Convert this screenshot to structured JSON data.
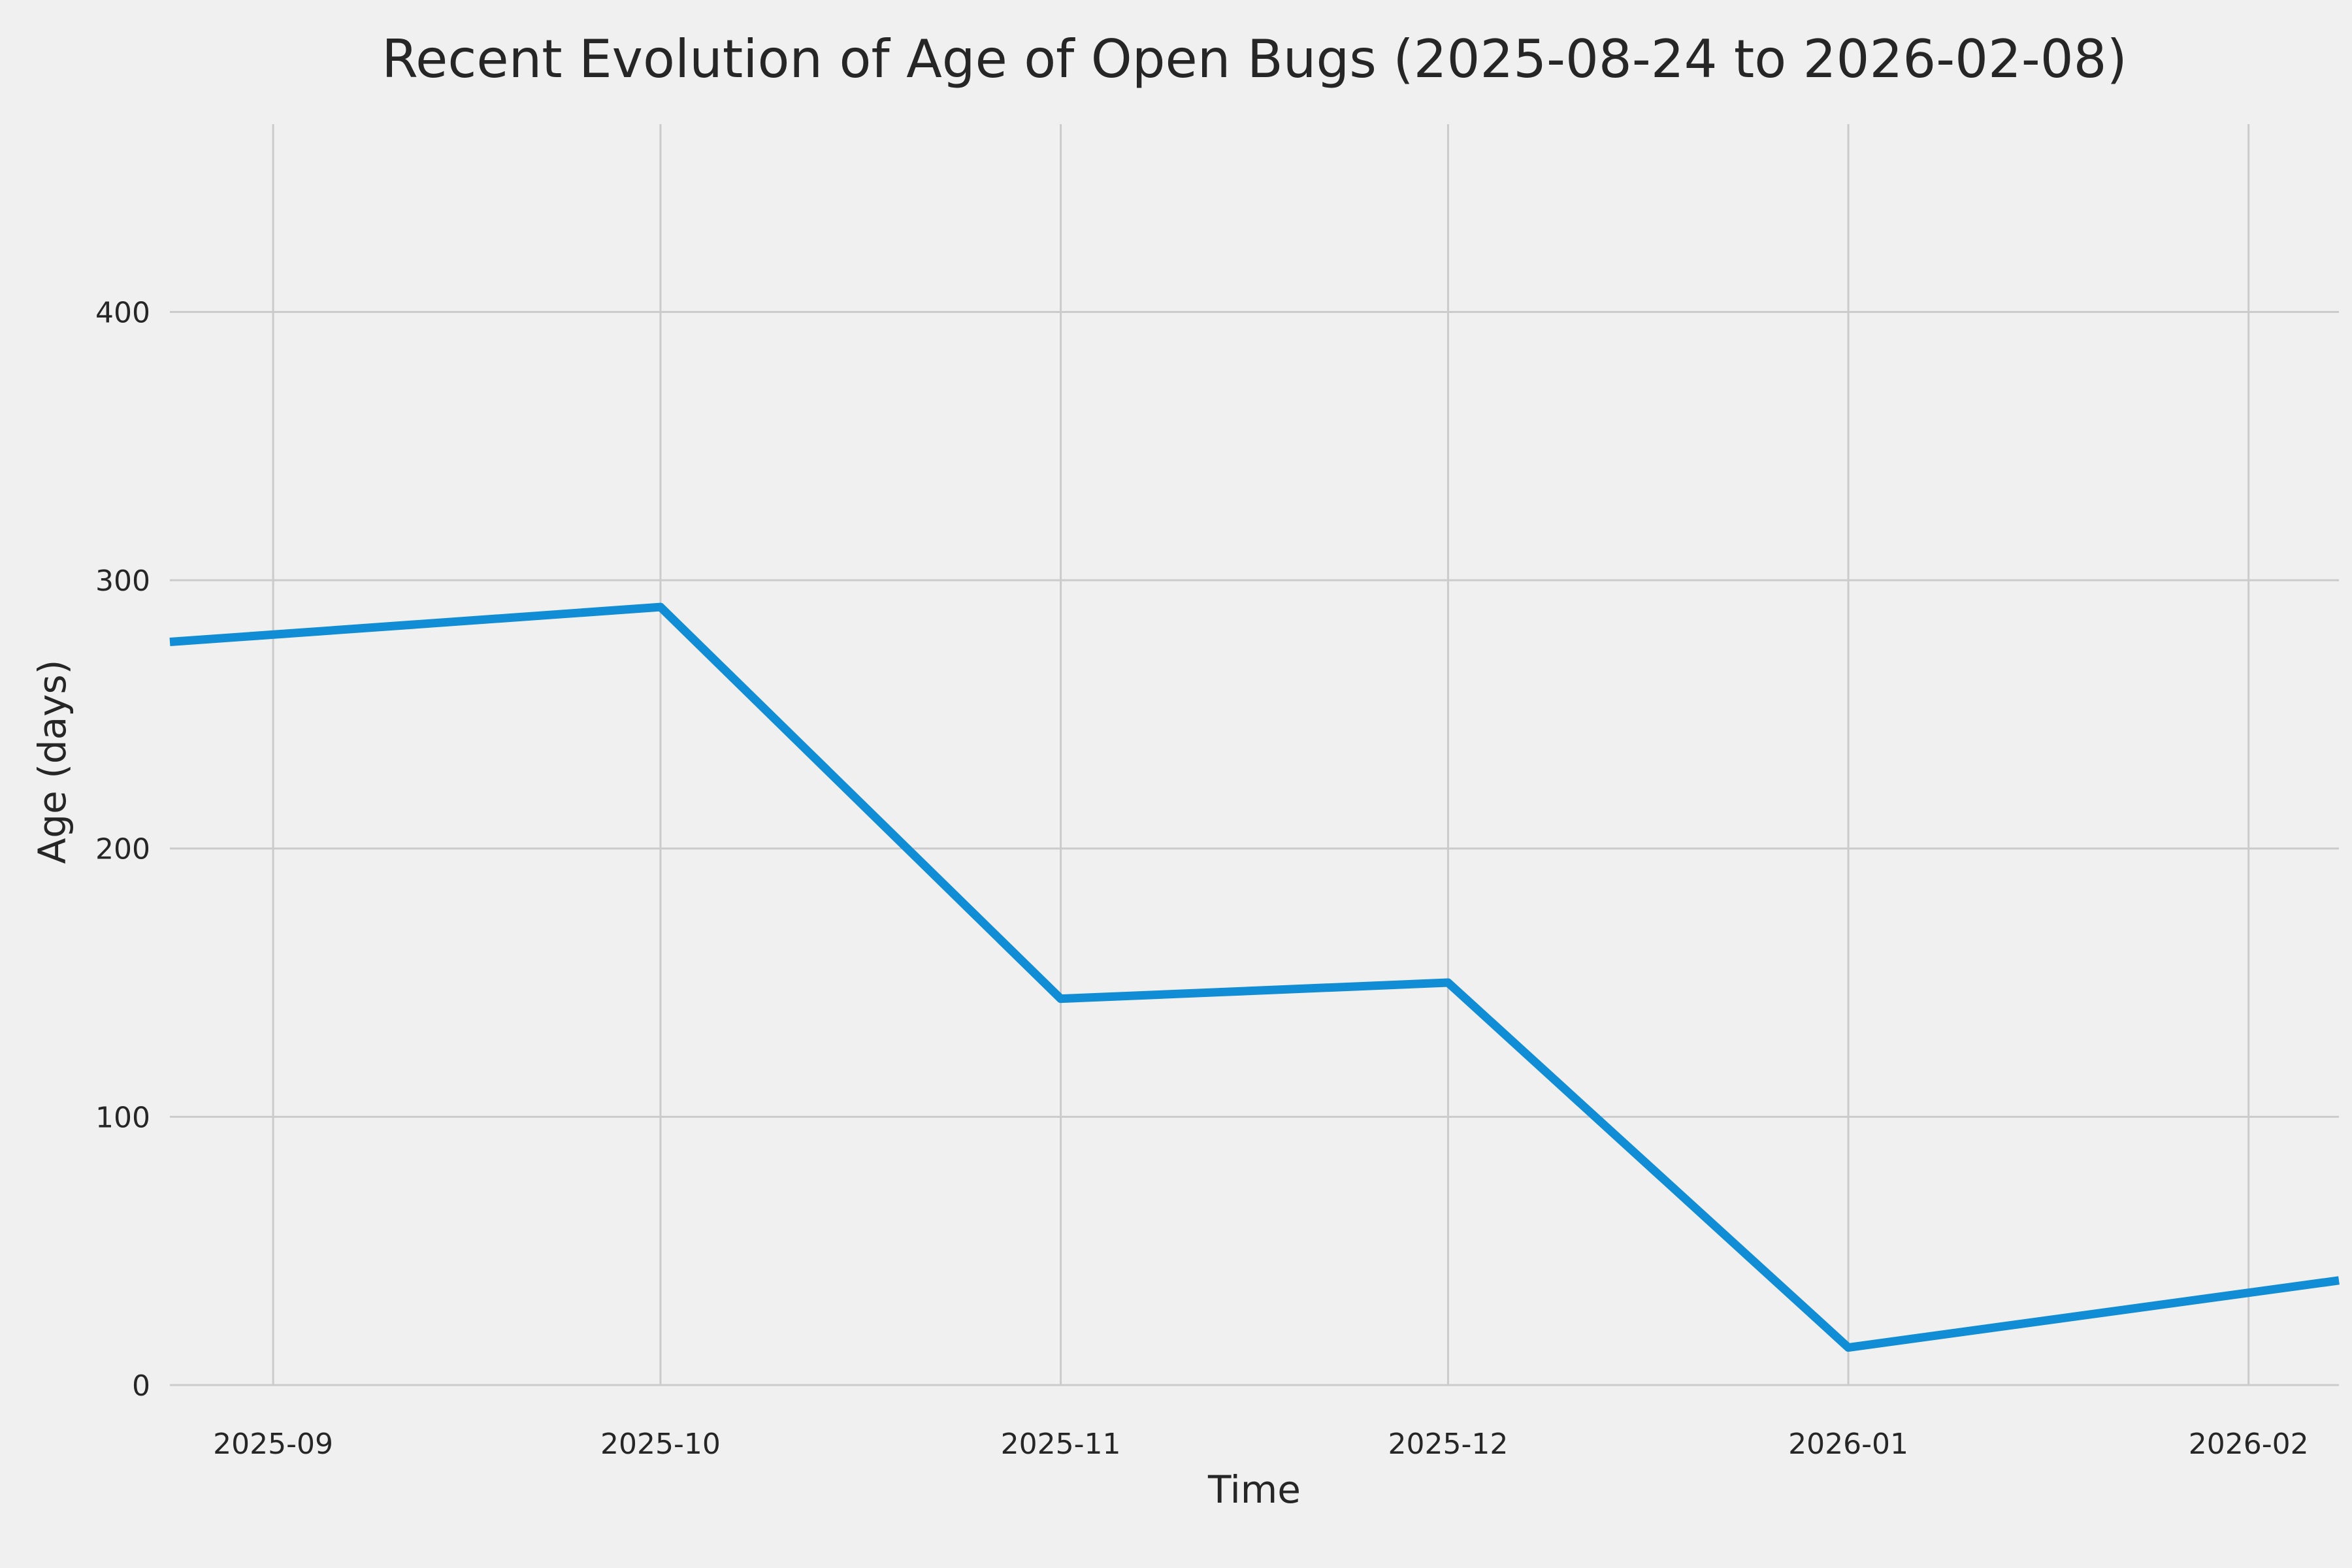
{
  "chart_data": {
    "type": "line",
    "title": "Recent Evolution of Age of Open Bugs (2025-08-24 to 2026-02-08)",
    "xlabel": "Time",
    "ylabel": "Age (days)",
    "xlim": [
      "2025-08-24",
      "2026-02-08"
    ],
    "ylim": [
      0,
      470
    ],
    "grid": true,
    "background_color": "#f0f0f0",
    "gridline_color": "#cbcbcb",
    "text_color": "#262626",
    "x_ticks": [
      {
        "label": "2025-09",
        "date": "2025-09-01"
      },
      {
        "label": "2025-10",
        "date": "2025-10-01"
      },
      {
        "label": "2025-11",
        "date": "2025-11-01"
      },
      {
        "label": "2025-12",
        "date": "2025-12-01"
      },
      {
        "label": "2026-01",
        "date": "2026-01-01"
      },
      {
        "label": "2026-02",
        "date": "2026-02-01"
      }
    ],
    "y_ticks": [
      {
        "label": "0",
        "value": 0
      },
      {
        "label": "100",
        "value": 100
      },
      {
        "label": "200",
        "value": 200
      },
      {
        "label": "300",
        "value": 300
      },
      {
        "label": "400",
        "value": 400
      }
    ],
    "series": [
      {
        "name": "age-of-open-bugs",
        "color": "#108dd5",
        "line_width": 13,
        "x": [
          "2025-08-24",
          "2025-10-01",
          "2025-11-01",
          "2025-12-01",
          "2026-01-01",
          "2026-02-08"
        ],
        "values": [
          277,
          290,
          144,
          150,
          14,
          39
        ]
      }
    ]
  }
}
